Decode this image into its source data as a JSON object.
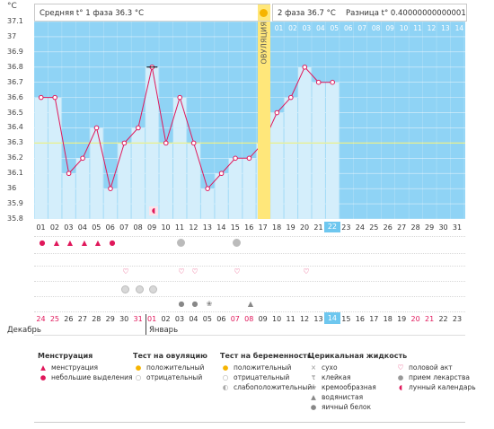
{
  "header": {
    "unit": "°C",
    "phase1": "Средняя t° 1 фаза 36.3 °C",
    "phase2": "2 фаза 36.7 °C",
    "diff": "Разница t° 0.40000000000001 °C",
    "ovulation_label": "ОВУЛЯЦИЯ"
  },
  "chart_data": {
    "type": "line",
    "title": "",
    "ylim": [
      35.8,
      37.1
    ],
    "y_ticks": [
      "37.1",
      "37",
      "36.9",
      "36.8",
      "36.7",
      "36.6",
      "36.5",
      "36.4",
      "36.3",
      "36.2",
      "36.1",
      "36",
      "35.9",
      "35.8"
    ],
    "cover_line": 36.3,
    "x": [
      "01",
      "02",
      "03",
      "04",
      "05",
      "06",
      "07",
      "08",
      "09",
      "10",
      "11",
      "12",
      "13",
      "14",
      "15",
      "16",
      "17",
      "18",
      "19",
      "20",
      "21",
      "22"
    ],
    "series": [
      {
        "name": "",
        "values": [
          36.6,
          36.6,
          36.1,
          36.2,
          36.4,
          36.0,
          36.3,
          36.4,
          36.8,
          36.3,
          36.6,
          36.3,
          36.0,
          36.1,
          36.2,
          36.2,
          36.3,
          36.5,
          36.6,
          36.8,
          36.7,
          36.7
        ]
      }
    ],
    "cycle_days": [
      "01",
      "02",
      "03",
      "04",
      "05",
      "06",
      "07",
      "08",
      "09",
      "10",
      "11",
      "12",
      "13",
      "14",
      "15",
      "16",
      "17",
      "18",
      "19",
      "20",
      "21",
      "22",
      "23",
      "24",
      "25",
      "26",
      "27",
      "28",
      "29",
      "30",
      "31"
    ],
    "today_day": "22",
    "post_ovulation_days": [
      "01",
      "02",
      "03",
      "04",
      "05",
      "06",
      "07",
      "08",
      "09",
      "10",
      "11",
      "12",
      "13",
      "14"
    ]
  },
  "calendar": {
    "dates": [
      "24",
      "25",
      "26",
      "27",
      "28",
      "29",
      "30",
      "31",
      "01",
      "02",
      "03",
      "04",
      "05",
      "06",
      "07",
      "08",
      "09",
      "10",
      "11",
      "12",
      "13",
      "14",
      "15",
      "16",
      "17",
      "18",
      "19",
      "20",
      "21",
      "22",
      "23"
    ],
    "red_dates_idx": [
      0,
      1,
      7,
      8,
      14,
      15,
      27,
      28
    ],
    "today_idx": 21,
    "month_left": "Декабрь",
    "month_right": "Январь"
  },
  "legend": {
    "menstruation": {
      "title": "Менструация",
      "items": [
        "менструация",
        "небольшие выделения"
      ]
    },
    "ovulation_test": {
      "title": "Тест на овуляцию",
      "items": [
        "положительный",
        "отрицательный"
      ]
    },
    "pregnancy_test": {
      "title": "Тест на беременность",
      "items": [
        "положительный",
        "отрицательный",
        "слабоположительный"
      ]
    },
    "cervical": {
      "title": "Церикальная жидкость",
      "items": [
        "сухо",
        "клейкая",
        "кремообразная",
        "водянистая",
        "яичный белок"
      ]
    },
    "other": {
      "items": [
        "половой акт",
        "прием лекарства",
        "лунный календарь"
      ]
    }
  }
}
